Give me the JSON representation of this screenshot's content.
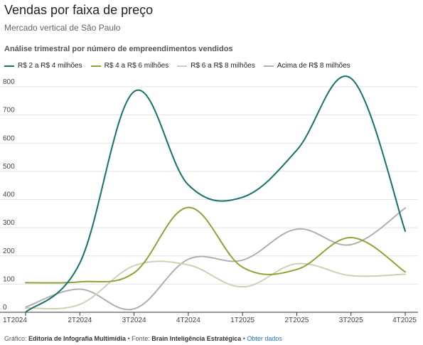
{
  "header": {
    "title": "Vendas por faixa de preço",
    "subtitle": "Mercado vertical de São Paulo",
    "chart_heading": "Análise trimestral por número de empreendimentos vendidos"
  },
  "footer": {
    "credit_label": "Gráfico: ",
    "credit_value": "Editoria de Infografia Multimídia",
    "source_label": " • Fonte: ",
    "source_value": "Brain Inteligência Estratégica",
    "separator": " • ",
    "link": "Obter dados"
  },
  "chart_data": {
    "type": "line",
    "categories": [
      "1T2024",
      "2T2024",
      "3T2024",
      "4T2024",
      "1T2025",
      "2T2025",
      "3T2025",
      "4T2025"
    ],
    "ylim": [
      0,
      800
    ],
    "yticks": [
      0,
      100,
      200,
      300,
      400,
      500,
      600,
      700,
      800
    ],
    "grid": true,
    "legend_position": "top-left",
    "series": [
      {
        "name": "R$ 2 a R$ 4 milhões",
        "color": "#15736c",
        "values": [
          0,
          175,
          783,
          452,
          408,
          575,
          830,
          288
        ]
      },
      {
        "name": "R$ 4 a R$ 6 milhões",
        "color": "#8aa535",
        "values": [
          105,
          108,
          140,
          372,
          160,
          152,
          265,
          143
        ]
      },
      {
        "name": "R$ 6 a R$ 8 milhões",
        "color": "#d0cfb4",
        "values": [
          15,
          28,
          165,
          168,
          90,
          172,
          130,
          135
        ]
      },
      {
        "name": "Acima de R$ 8 milhões",
        "color": "#b0b0b0",
        "values": [
          18,
          82,
          12,
          188,
          185,
          295,
          240,
          370
        ]
      }
    ]
  }
}
